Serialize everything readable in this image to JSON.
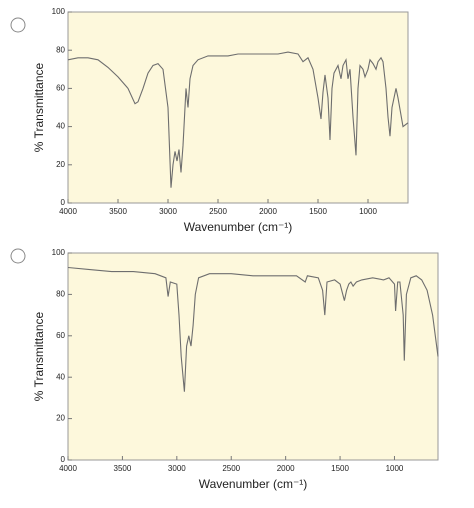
{
  "chart_data": [
    {
      "type": "line",
      "x_label": "Wavenumber (cm⁻¹)",
      "y_label": "% Transmittance",
      "xlim": [
        4000,
        600
      ],
      "ylim": [
        0,
        100
      ],
      "xticks": [
        4000,
        3500,
        3000,
        2500,
        2000,
        1500,
        1000
      ],
      "yticks": [
        0,
        20,
        40,
        60,
        80,
        100
      ],
      "color": "#6e6e6e",
      "background": "#fdf8dc",
      "x": [
        4000,
        3900,
        3800,
        3700,
        3600,
        3500,
        3400,
        3330,
        3300,
        3250,
        3200,
        3150,
        3100,
        3050,
        3000,
        2970,
        2950,
        2930,
        2910,
        2890,
        2870,
        2850,
        2820,
        2800,
        2780,
        2750,
        2700,
        2600,
        2500,
        2400,
        2300,
        2200,
        2100,
        2000,
        1900,
        1800,
        1700,
        1650,
        1600,
        1550,
        1500,
        1470,
        1450,
        1430,
        1400,
        1380,
        1360,
        1340,
        1300,
        1270,
        1250,
        1220,
        1200,
        1180,
        1150,
        1120,
        1100,
        1080,
        1050,
        1030,
        1000,
        980,
        950,
        920,
        900,
        870,
        850,
        820,
        800,
        780,
        760,
        720,
        700,
        650,
        600
      ],
      "values": [
        75,
        76,
        76,
        75,
        71,
        66,
        60,
        52,
        53,
        60,
        68,
        72,
        73,
        70,
        50,
        8,
        20,
        27,
        22,
        28,
        16,
        30,
        60,
        50,
        65,
        72,
        75,
        77,
        77,
        77,
        78,
        78,
        78,
        78,
        78,
        79,
        78,
        74,
        76,
        70,
        55,
        44,
        58,
        67,
        55,
        33,
        60,
        68,
        72,
        65,
        72,
        75,
        65,
        70,
        45,
        25,
        60,
        72,
        70,
        66,
        70,
        75,
        73,
        70,
        74,
        76,
        74,
        60,
        45,
        35,
        50,
        60,
        55,
        40,
        42
      ]
    },
    {
      "type": "line",
      "x_label": "Wavenumber (cm⁻¹)",
      "y_label": "% Transmittance",
      "xlim": [
        4000,
        600
      ],
      "ylim": [
        0,
        100
      ],
      "xticks": [
        4000,
        3500,
        3000,
        2500,
        2000,
        1500,
        1000
      ],
      "yticks": [
        0,
        20,
        40,
        60,
        80,
        100
      ],
      "color": "#6e6e6e",
      "background": "#fdf8dc",
      "x": [
        4000,
        3800,
        3600,
        3400,
        3200,
        3100,
        3080,
        3060,
        3000,
        2980,
        2960,
        2930,
        2910,
        2890,
        2870,
        2850,
        2830,
        2800,
        2700,
        2500,
        2300,
        2100,
        1900,
        1820,
        1800,
        1700,
        1660,
        1640,
        1620,
        1550,
        1500,
        1460,
        1440,
        1420,
        1400,
        1380,
        1350,
        1300,
        1200,
        1100,
        1050,
        1000,
        990,
        970,
        950,
        920,
        910,
        890,
        850,
        800,
        750,
        700,
        650,
        600
      ],
      "values": [
        93,
        92,
        91,
        91,
        90,
        88,
        79,
        86,
        85,
        70,
        50,
        33,
        55,
        60,
        55,
        65,
        80,
        88,
        90,
        90,
        89,
        89,
        89,
        86,
        89,
        88,
        82,
        70,
        86,
        87,
        85,
        77,
        82,
        85,
        86,
        84,
        86,
        87,
        88,
        87,
        88,
        85,
        72,
        86,
        86,
        70,
        48,
        80,
        88,
        89,
        87,
        82,
        70,
        50
      ]
    }
  ]
}
